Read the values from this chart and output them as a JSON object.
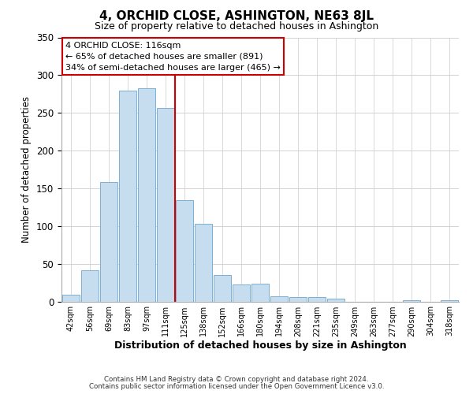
{
  "title": "4, ORCHID CLOSE, ASHINGTON, NE63 8JL",
  "subtitle": "Size of property relative to detached houses in Ashington",
  "xlabel": "Distribution of detached houses by size in Ashington",
  "ylabel": "Number of detached properties",
  "bin_labels": [
    "42sqm",
    "56sqm",
    "69sqm",
    "83sqm",
    "97sqm",
    "111sqm",
    "125sqm",
    "138sqm",
    "152sqm",
    "166sqm",
    "180sqm",
    "194sqm",
    "208sqm",
    "221sqm",
    "235sqm",
    "249sqm",
    "263sqm",
    "277sqm",
    "290sqm",
    "304sqm",
    "318sqm"
  ],
  "bar_values": [
    9,
    41,
    158,
    280,
    283,
    257,
    134,
    103,
    35,
    22,
    23,
    7,
    6,
    6,
    4,
    0,
    0,
    0,
    2,
    0,
    2
  ],
  "bar_color": "#c6ddef",
  "bar_edge_color": "#7ab0d4",
  "vline_x": 5.5,
  "vline_color": "#cc0000",
  "annotation_title": "4 ORCHID CLOSE: 116sqm",
  "annotation_line1": "← 65% of detached houses are smaller (891)",
  "annotation_line2": "34% of semi-detached houses are larger (465) →",
  "annotation_box_color": "#ffffff",
  "annotation_box_edge": "#cc0000",
  "footer1": "Contains HM Land Registry data © Crown copyright and database right 2024.",
  "footer2": "Contains public sector information licensed under the Open Government Licence v3.0.",
  "ylim": [
    0,
    350
  ],
  "yticks": [
    0,
    50,
    100,
    150,
    200,
    250,
    300,
    350
  ],
  "title_fontsize": 11,
  "subtitle_fontsize": 9,
  "background_color": "#ffffff"
}
